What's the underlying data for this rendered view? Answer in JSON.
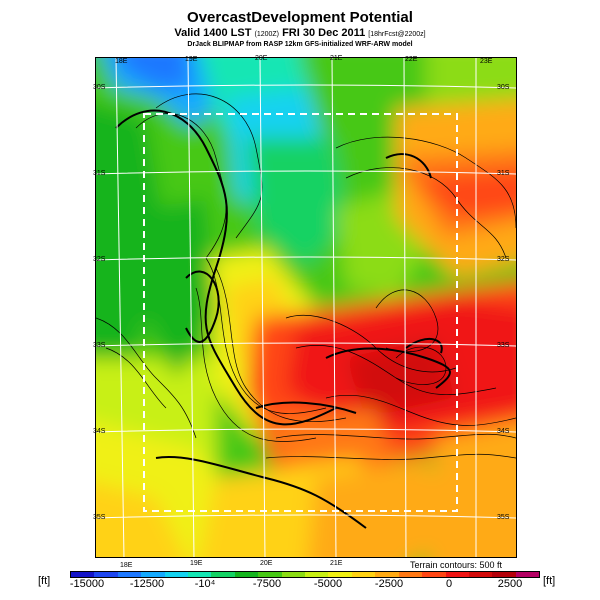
{
  "header": {
    "title": "OvercastDevelopment Potential",
    "valid_line": "Valid 1400 LST",
    "valid_code": "(1200Z)",
    "valid_date": "FRI 30 Dec 2011",
    "forecast_note": "[18hrFcst@2200z]",
    "credit": "DrJack BLIPMAP from RASP 12km GFS-initialized WRF-ARW model"
  },
  "map": {
    "lon_labels_top": [
      "18E",
      "19E",
      "20E",
      "21E",
      "22E",
      "23E"
    ],
    "lon_labels_bottom": [
      "18E",
      "19E",
      "20E",
      "21E"
    ],
    "lat_labels_left": [
      "30S",
      "31S",
      "32S",
      "33S",
      "34S",
      "35S"
    ],
    "lat_labels_right": [
      "30S",
      "31S",
      "32S",
      "33S",
      "34S",
      "35S"
    ],
    "terrain_note": "Terrain contours: 500 ft"
  },
  "colorbar": {
    "unit_left": "[ft]",
    "unit_right": "[ft]",
    "ticks": [
      "-15000",
      "-12500",
      "-10⁴",
      "-7500",
      "-5000",
      "-2500",
      "0",
      "2500"
    ],
    "colors": [
      "#1414c8",
      "#1e46f0",
      "#1e78ff",
      "#14aaff",
      "#14d2f0",
      "#14e6b4",
      "#14d264",
      "#14b41e",
      "#46c814",
      "#8cdc14",
      "#c8f014",
      "#f0f014",
      "#ffd214",
      "#ffaa14",
      "#ff7814",
      "#ff4614",
      "#f01414",
      "#d20a0a",
      "#b4000a",
      "#b40064"
    ]
  }
}
